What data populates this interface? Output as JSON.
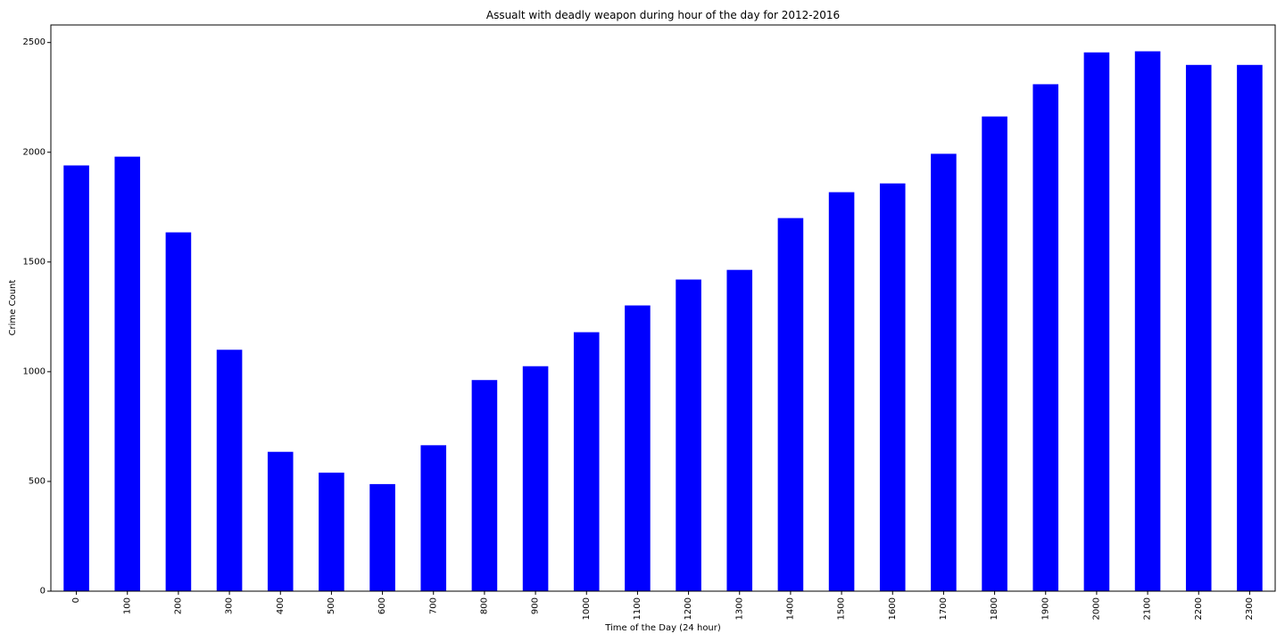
{
  "chart_data": {
    "type": "bar",
    "title": "Assualt with deadly weapon during hour of the day for 2012-2016",
    "xlabel": "Time of the Day (24 hour)",
    "ylabel": "Crime Count",
    "categories": [
      "0",
      "100",
      "200",
      "300",
      "400",
      "500",
      "600",
      "700",
      "800",
      "900",
      "1000",
      "1100",
      "1200",
      "1300",
      "1400",
      "1500",
      "1600",
      "1700",
      "1800",
      "1900",
      "2000",
      "2100",
      "2200",
      "2300"
    ],
    "values": [
      1940,
      1980,
      1635,
      1100,
      635,
      540,
      488,
      665,
      962,
      1025,
      1180,
      1302,
      1420,
      1464,
      1700,
      1818,
      1858,
      1993,
      2163,
      2310,
      2455,
      2460,
      2398,
      2398
    ],
    "ylim": [
      0,
      2580
    ],
    "yticks": [
      0,
      500,
      1000,
      1500,
      2000,
      2500
    ],
    "bar_color": "#0000ff",
    "grid": false,
    "legend": "none"
  }
}
